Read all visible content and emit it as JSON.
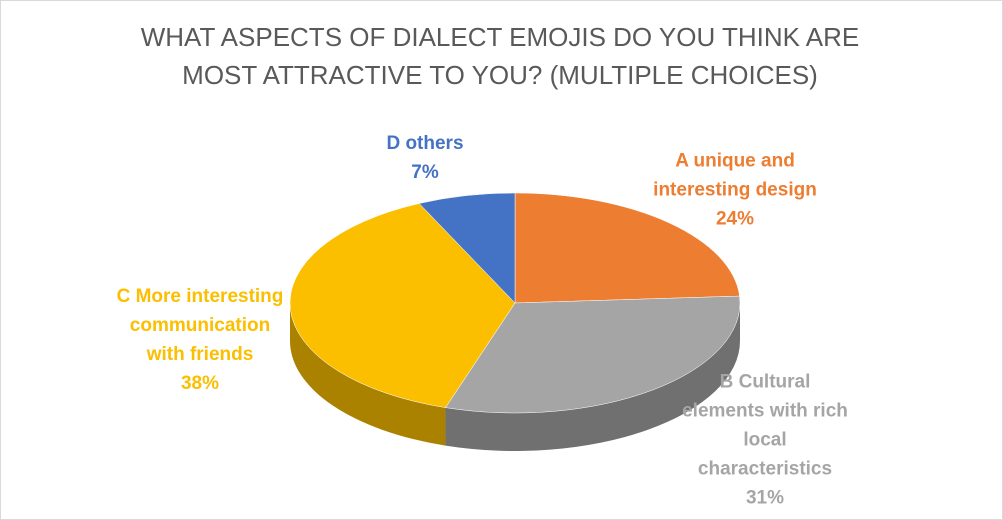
{
  "chart_data": {
    "type": "pie",
    "title": "WHAT ASPECTS OF DIALECT EMOJIS DO YOU THINK ARE MOST ATTRACTIVE TO YOU?  (MULTIPLE CHOICES)",
    "categories": [
      "A unique and interesting design",
      "B Cultural elements with rich local characteristics",
      "C More interesting communication with friends",
      "D others"
    ],
    "values": [
      24,
      31,
      38,
      7
    ],
    "value_labels": [
      "24%",
      "31%",
      "38%",
      "7%"
    ],
    "colors": [
      "#ed7d31",
      "#a5a5a5",
      "#fbbf00",
      "#4472c4"
    ]
  }
}
